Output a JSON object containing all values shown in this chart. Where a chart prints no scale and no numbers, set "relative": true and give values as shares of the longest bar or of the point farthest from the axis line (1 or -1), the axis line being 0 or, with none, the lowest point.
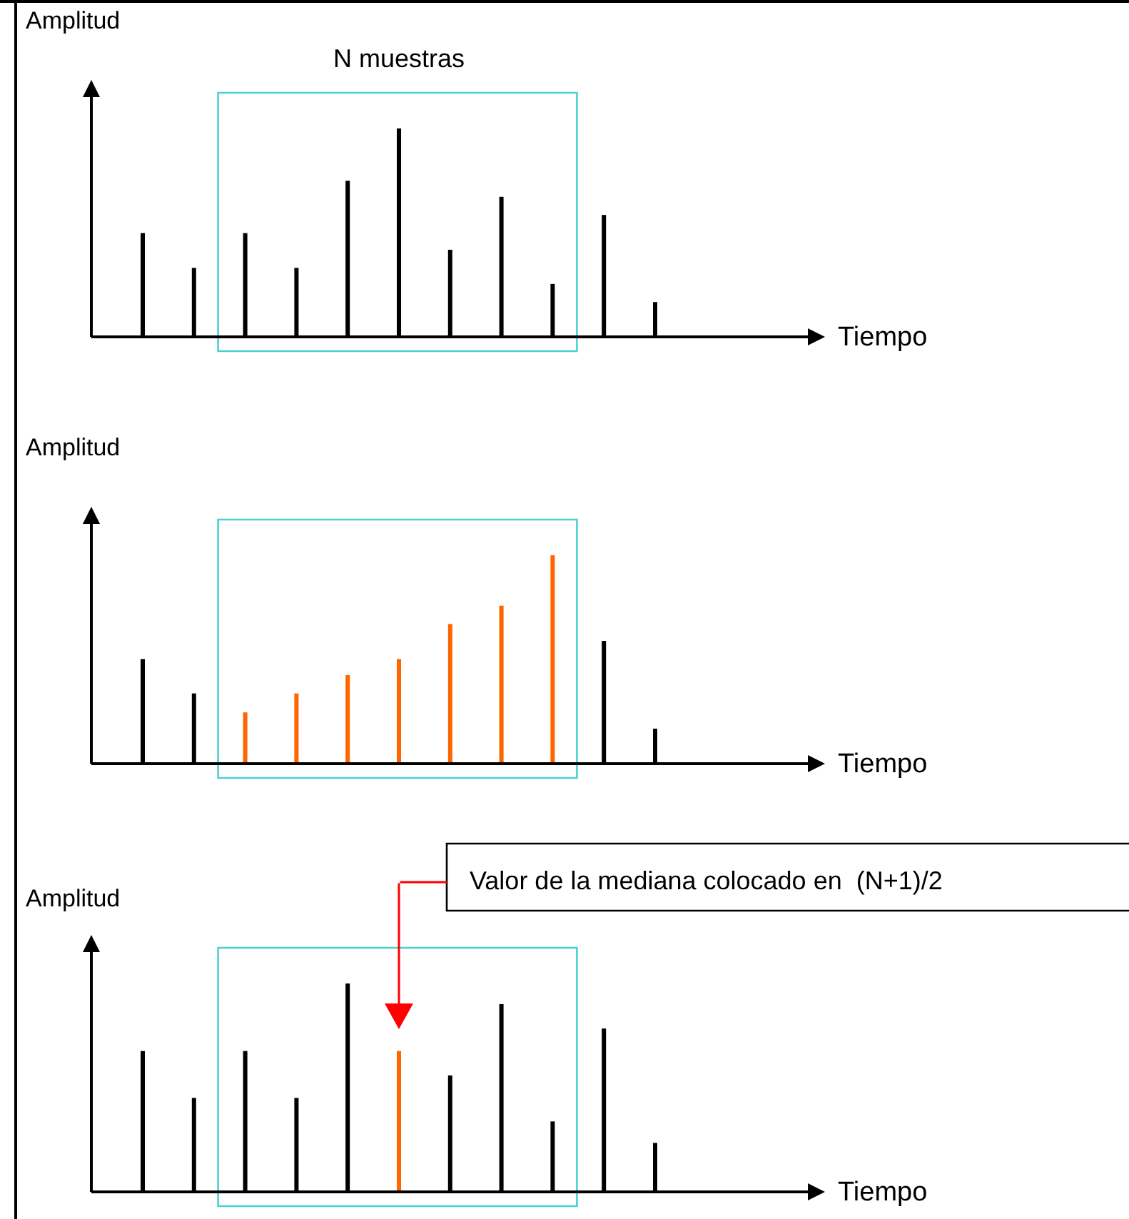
{
  "chart_data": [
    {
      "type": "bar",
      "relative": true,
      "xlabel": "Tiempo",
      "ylabel": "Amplitud",
      "annotations": [
        "N muestras"
      ],
      "categories": [
        null,
        null,
        null,
        null,
        null,
        null,
        null,
        null,
        null,
        null,
        null
      ],
      "values": [
        0.498,
        0.331,
        0.498,
        0.331,
        0.749,
        1,
        0.418,
        0.672,
        0.254,
        0.585,
        0.167
      ],
      "colors": [
        "#000000",
        "#000000",
        "#000000",
        "#000000",
        "#000000",
        "#000000",
        "#000000",
        "#000000",
        "#000000",
        "#000000",
        "#000000"
      ]
    },
    {
      "type": "bar",
      "relative": true,
      "xlabel": "Tiempo",
      "ylabel": "Amplitud",
      "categories": [
        null,
        null,
        null,
        null,
        null,
        null,
        null,
        null,
        null,
        null,
        null
      ],
      "values": [
        0.502,
        0.337,
        0.246,
        0.337,
        0.425,
        0.502,
        0.67,
        0.758,
        1,
        0.589,
        0.168
      ],
      "colors": [
        "#000000",
        "#000000",
        "#ff6600",
        "#ff6600",
        "#ff6600",
        "#ff6600",
        "#ff6600",
        "#ff6600",
        "#ff6600",
        "#000000",
        "#000000"
      ]
    },
    {
      "type": "bar",
      "relative": true,
      "xlabel": "Tiempo",
      "ylabel": "Amplitud",
      "annotations": [
        "Valor de la mediana colocado en  (N+1)/2"
      ],
      "categories": [
        null,
        null,
        null,
        null,
        null,
        null,
        null,
        null,
        null,
        null,
        null
      ],
      "values": [
        0.676,
        0.451,
        0.676,
        0.451,
        1,
        0.676,
        0.559,
        0.901,
        0.338,
        0.784,
        0.235
      ],
      "colors": [
        "#000000",
        "#000000",
        "#000000",
        "#000000",
        "#000000",
        "#ff6600",
        "#000000",
        "#000000",
        "#000000",
        "#000000",
        "#000000"
      ]
    }
  ]
}
